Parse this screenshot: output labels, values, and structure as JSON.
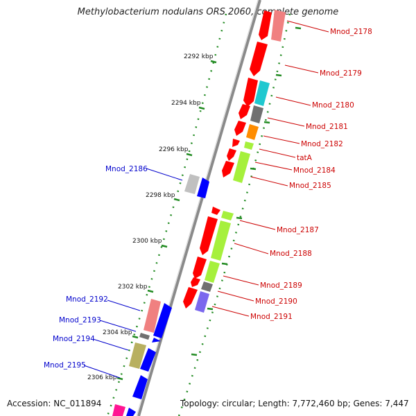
{
  "title": "Methylobacterium nodulans ORS 2060, complete genome",
  "footer": {
    "accession": "Accession: NC_011894",
    "topology": "Topology: circular; Length: 7,772,460 bp; Genes: 7,447"
  },
  "colors": {
    "backbone": "#8a8a8a",
    "tick_dots": "#228b22",
    "label_forward": "#cc0000",
    "label_reverse": "#0000cc",
    "red": "#ff0000",
    "pink": "#f08080",
    "cyan": "#20c8d0",
    "gray": "#707070",
    "orange": "#ff8c00",
    "lime": "#a6f03c",
    "silver": "#c0c0c0",
    "blue": "#0000ff",
    "olive": "#b8b060",
    "purple": "#7b68ee",
    "magenta": "#ff1493"
  },
  "scale_labels": [
    "2292 kbp",
    "2294 kbp",
    "2296 kbp",
    "2298 kbp",
    "2300 kbp",
    "2302 kbp",
    "2304 kbp",
    "2306 kbp"
  ],
  "gene_labels_forward": [
    "Mnod_2178",
    "Mnod_2179",
    "Mnod_2180",
    "Mnod_2181",
    "Mnod_2182",
    "tatA",
    "Mnod_2184",
    "Mnod_2185",
    "Mnod_2187",
    "Mnod_2188",
    "Mnod_2189",
    "Mnod_2190",
    "Mnod_2191"
  ],
  "gene_labels_reverse": [
    "Mnod_2186",
    "Mnod_2192",
    "Mnod_2193",
    "Mnod_2194",
    "Mnod_2195"
  ]
}
